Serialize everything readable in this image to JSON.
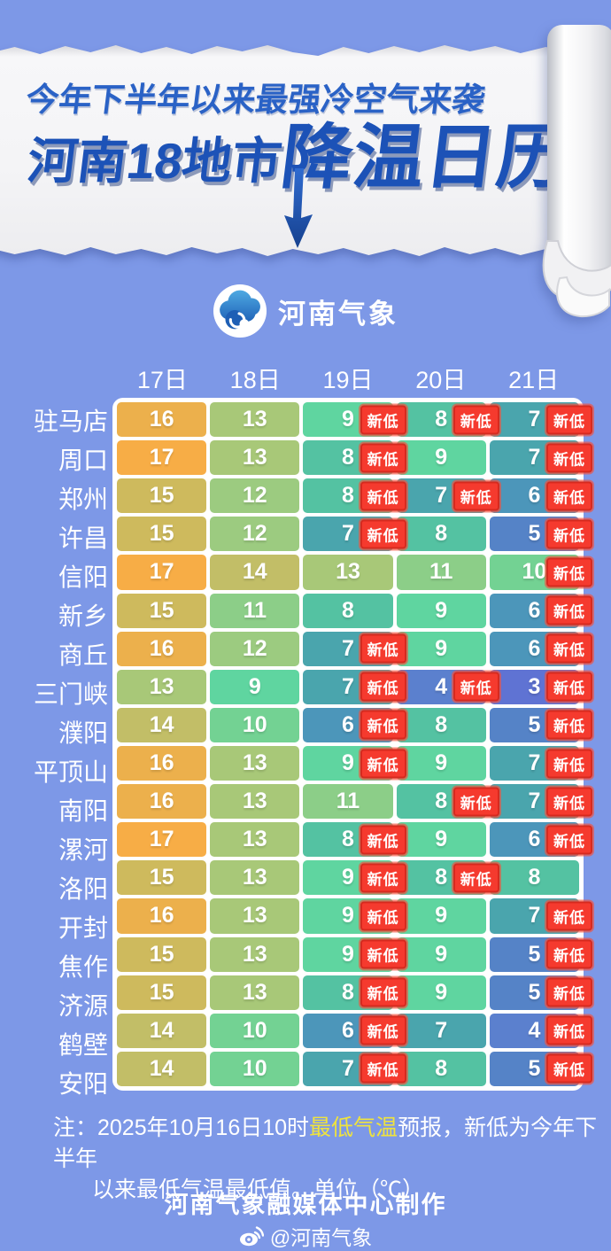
{
  "colors": {
    "background": "#7D98E7",
    "paper": "#F4F4F6",
    "title_blue": "#1C52B7",
    "subtitle_blue": "#2A62C6",
    "badge_red": "#F53A2E",
    "badge_border": "#D62A1F",
    "note_highlight": "#EFE33D",
    "brand_blue": "#2F7CC9"
  },
  "header": {
    "subtitle": "今年下半年以来最强冷空气来袭",
    "title_left": "河南18地市",
    "title_right": "降温日历",
    "brand": "河南气象"
  },
  "chart_data": {
    "type": "table",
    "title": "河南18地市降温日历",
    "subtitle": "今年下半年以来最强冷空气来袭",
    "unit": "℃",
    "columns": [
      "17日",
      "18日",
      "19日",
      "20日",
      "21日"
    ],
    "new_low_label": "新低",
    "rows": [
      {
        "city": "驻马店",
        "temps": [
          16,
          13,
          9,
          8,
          7
        ],
        "new_low": [
          false,
          false,
          true,
          true,
          true
        ]
      },
      {
        "city": "周口",
        "temps": [
          17,
          13,
          8,
          9,
          7
        ],
        "new_low": [
          false,
          false,
          true,
          false,
          true
        ]
      },
      {
        "city": "郑州",
        "temps": [
          15,
          12,
          8,
          7,
          6
        ],
        "new_low": [
          false,
          false,
          true,
          true,
          true
        ]
      },
      {
        "city": "许昌",
        "temps": [
          15,
          12,
          7,
          8,
          5
        ],
        "new_low": [
          false,
          false,
          true,
          false,
          true
        ]
      },
      {
        "city": "信阳",
        "temps": [
          17,
          14,
          13,
          11,
          10
        ],
        "new_low": [
          false,
          false,
          false,
          false,
          true
        ]
      },
      {
        "city": "新乡",
        "temps": [
          15,
          11,
          8,
          9,
          6
        ],
        "new_low": [
          false,
          false,
          false,
          false,
          true
        ]
      },
      {
        "city": "商丘",
        "temps": [
          16,
          12,
          7,
          9,
          6
        ],
        "new_low": [
          false,
          false,
          true,
          false,
          true
        ]
      },
      {
        "city": "三门峡",
        "temps": [
          13,
          9,
          7,
          4,
          3
        ],
        "new_low": [
          false,
          false,
          true,
          true,
          true
        ]
      },
      {
        "city": "濮阳",
        "temps": [
          14,
          10,
          6,
          8,
          5
        ],
        "new_low": [
          false,
          false,
          true,
          false,
          true
        ]
      },
      {
        "city": "平顶山",
        "temps": [
          16,
          13,
          9,
          9,
          7
        ],
        "new_low": [
          false,
          false,
          true,
          false,
          true
        ]
      },
      {
        "city": "南阳",
        "temps": [
          16,
          13,
          11,
          8,
          7
        ],
        "new_low": [
          false,
          false,
          false,
          true,
          true
        ]
      },
      {
        "city": "漯河",
        "temps": [
          17,
          13,
          8,
          9,
          6
        ],
        "new_low": [
          false,
          false,
          true,
          false,
          true
        ]
      },
      {
        "city": "洛阳",
        "temps": [
          15,
          13,
          9,
          8,
          8
        ],
        "new_low": [
          false,
          false,
          true,
          true,
          false
        ]
      },
      {
        "city": "开封",
        "temps": [
          16,
          13,
          9,
          9,
          7
        ],
        "new_low": [
          false,
          false,
          true,
          false,
          true
        ]
      },
      {
        "city": "焦作",
        "temps": [
          15,
          13,
          9,
          9,
          5
        ],
        "new_low": [
          false,
          false,
          true,
          false,
          true
        ]
      },
      {
        "city": "济源",
        "temps": [
          15,
          13,
          8,
          9,
          5
        ],
        "new_low": [
          false,
          false,
          true,
          false,
          true
        ]
      },
      {
        "city": "鹤壁",
        "temps": [
          14,
          10,
          6,
          7,
          4
        ],
        "new_low": [
          false,
          false,
          true,
          false,
          true
        ]
      },
      {
        "city": "安阳",
        "temps": [
          14,
          10,
          7,
          8,
          5
        ],
        "new_low": [
          false,
          false,
          true,
          false,
          true
        ]
      }
    ],
    "temp_colors": {
      "17": "#F7AD46",
      "16": "#ECB04C",
      "15": "#CEBA5D",
      "14": "#C2BE67",
      "13": "#A8C878",
      "12": "#9CCB80",
      "11": "#8CCE88",
      "10": "#73D293",
      "9": "#5FD5A0",
      "8": "#54C2A2",
      "7": "#4AA5AD",
      "6": "#4C96BA",
      "5": "#5583C7",
      "4": "#5B80CE",
      "3": "#5F73D3"
    }
  },
  "footer": {
    "note_prefix": "注：2025年10月16日10时",
    "note_highlight": "最低气温",
    "note_suffix": "预报，新低为今年下半年",
    "note_line2": "以来最低气温最低值。单位（℃）",
    "credit": "河南气象融媒体中心制作",
    "weibo": "@河南气象"
  }
}
